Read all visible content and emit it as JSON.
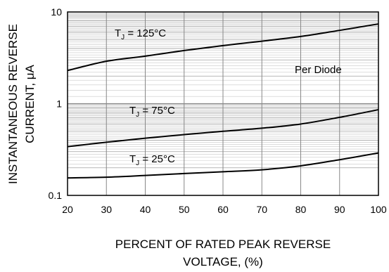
{
  "chart_data": {
    "type": "line",
    "title": "",
    "x_label_line1": "PERCENT OF RATED PEAK REVERSE",
    "x_label_line2": "VOLTAGE, (%)",
    "y_label_line1": "INSTANTANEOUS REVERSE",
    "y_label_line2": "CURRENT, μA",
    "x_ticks": [
      "20",
      "30",
      "40",
      "50",
      "60",
      "70",
      "80",
      "90",
      "100"
    ],
    "y_ticks": [
      "0.1",
      "1",
      "10"
    ],
    "xlim": [
      20,
      100
    ],
    "ylim": [
      0.1,
      10
    ],
    "y_scale": "log",
    "grid": true,
    "x": [
      20,
      30,
      40,
      50,
      60,
      70,
      80,
      90,
      100
    ],
    "series": [
      {
        "name": "TJ = 125°C",
        "label_main": "T",
        "label_sub": "J",
        "label_rest": " = 125°C",
        "values": [
          2.3,
          2.9,
          3.3,
          3.8,
          4.3,
          4.8,
          5.4,
          6.3,
          7.4
        ]
      },
      {
        "name": "TJ = 75°C",
        "label_main": "T",
        "label_sub": "J",
        "label_rest": " = 75°C",
        "values": [
          0.34,
          0.38,
          0.42,
          0.46,
          0.5,
          0.54,
          0.6,
          0.71,
          0.86
        ]
      },
      {
        "name": "TJ = 25°C",
        "label_main": "T",
        "label_sub": "J",
        "label_rest": " = 25°C",
        "values": [
          0.155,
          0.158,
          0.165,
          0.173,
          0.181,
          0.19,
          0.21,
          0.245,
          0.29
        ]
      }
    ],
    "annotation": "Per Diode"
  }
}
